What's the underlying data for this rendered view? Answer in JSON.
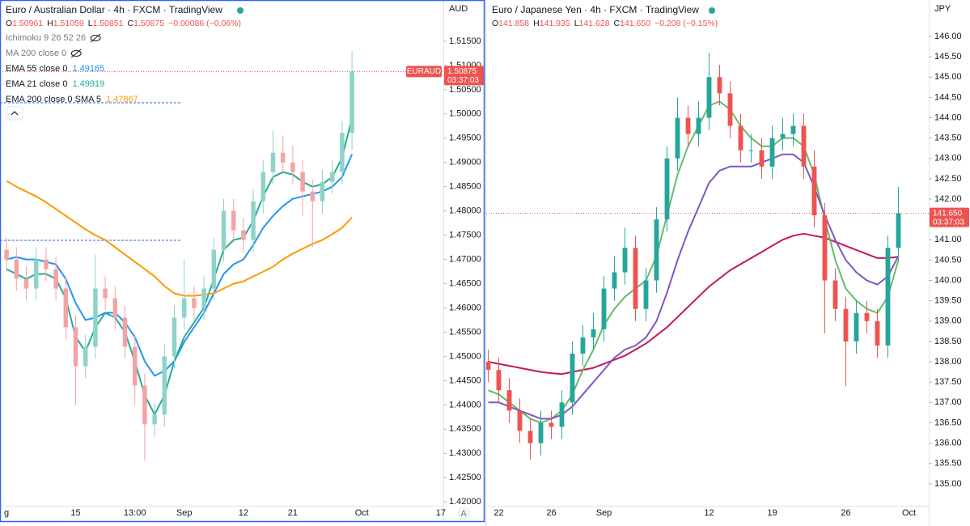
{
  "chart_data": [
    {
      "type": "candlestick",
      "title": "Euro / Australian Dollar · 4h · FXCM · TradingView",
      "ohlc": [
        {
          "label": "O",
          "value": "1.50961"
        },
        {
          "label": "H",
          "value": "1.51059"
        },
        {
          "label": "L",
          "value": "1.50851"
        },
        {
          "label": "C",
          "value": "1.50875"
        }
      ],
      "change": "−0.00086 (−0.06%)",
      "indicators": [
        "Ichimoku 9 26 52 26",
        "MA 200 close 0"
      ],
      "currency": "AUD",
      "symbol_tag": "EURAUD",
      "countdown": "03:37:03",
      "auto_button": "A",
      "up_color": "#8fd3c8",
      "down_color": "#f3a3a3",
      "ylim": [
        1.4192,
        1.5235
      ],
      "yticks": [
        {
          "value": 1.42,
          "label": "1.42000"
        },
        {
          "value": 1.425,
          "label": "1.42500"
        },
        {
          "value": 1.43,
          "label": "1.43000"
        },
        {
          "value": 1.435,
          "label": "1.43500"
        },
        {
          "value": 1.44,
          "label": "1.44000"
        },
        {
          "value": 1.445,
          "label": "1.44500"
        },
        {
          "value": 1.45,
          "label": "1.45000"
        },
        {
          "value": 1.455,
          "label": "1.45500"
        },
        {
          "value": 1.46,
          "label": "1.46000"
        },
        {
          "value": 1.465,
          "label": "1.46500"
        },
        {
          "value": 1.47,
          "label": "1.47000"
        },
        {
          "value": 1.475,
          "label": "1.47500"
        },
        {
          "value": 1.48,
          "label": "1.48000"
        },
        {
          "value": 1.485,
          "label": "1.48500"
        },
        {
          "value": 1.49,
          "label": "1.49000"
        },
        {
          "value": 1.495,
          "label": "1.49500"
        },
        {
          "value": 1.5,
          "label": "1.50000"
        },
        {
          "value": 1.505,
          "label": "1.50500"
        },
        {
          "value": 1.51,
          "label": "1.51000"
        },
        {
          "value": 1.515,
          "label": "1.51500"
        }
      ],
      "categories": [
        "g",
        null,
        null,
        null,
        null,
        null,
        null,
        "15",
        null,
        null,
        null,
        null,
        null,
        "13:00",
        null,
        null,
        null,
        null,
        "Sep",
        null,
        null,
        null,
        null,
        null,
        "12",
        null,
        null,
        null,
        null,
        "21",
        null,
        null,
        null,
        null,
        null,
        null,
        "Oct",
        null,
        null,
        null,
        null,
        null,
        null,
        null,
        "17"
      ],
      "open": [
        1.472,
        1.47,
        1.466,
        1.464,
        1.47,
        1.468,
        1.464,
        1.456,
        1.448,
        1.452,
        1.464,
        1.462,
        1.458,
        1.452,
        1.444,
        1.436,
        1.438,
        1.45,
        1.458,
        1.462,
        1.46,
        1.464,
        1.472,
        1.48,
        1.476,
        1.474,
        1.482,
        1.488,
        1.492,
        1.49,
        1.488,
        1.484,
        1.482,
        1.486,
        1.488,
        1.4961,
        null,
        null,
        null,
        null,
        null,
        null,
        null,
        null,
        null
      ],
      "high": [
        1.4745,
        1.4725,
        1.4685,
        1.4725,
        1.4725,
        1.4705,
        1.4665,
        1.4585,
        1.4545,
        1.471,
        1.4665,
        1.4645,
        1.4605,
        1.4545,
        1.4465,
        1.4405,
        1.4525,
        1.4605,
        1.47,
        1.4645,
        1.4665,
        1.4745,
        1.4825,
        1.4825,
        1.4785,
        1.4845,
        1.4905,
        1.4965,
        1.4955,
        1.4935,
        1.4905,
        1.4865,
        1.4885,
        1.4905,
        1.4985,
        1.513,
        null,
        null,
        null,
        null,
        null,
        null,
        null,
        null,
        null
      ],
      "low": [
        1.4675,
        1.4635,
        1.4615,
        1.4615,
        1.4655,
        1.4615,
        1.4535,
        1.44,
        1.4455,
        1.4495,
        1.4595,
        1.4555,
        1.4495,
        1.44,
        1.4285,
        1.4335,
        1.4355,
        1.4475,
        1.4555,
        1.4575,
        1.4575,
        1.4615,
        1.4695,
        1.4735,
        1.4715,
        1.4715,
        1.4795,
        1.4855,
        1.4875,
        1.4855,
        1.479,
        1.4725,
        1.4795,
        1.4835,
        1.4855,
        1.4925,
        null,
        null,
        null,
        null,
        null,
        null,
        null,
        null,
        null
      ],
      "close": [
        1.47,
        1.466,
        1.464,
        1.47,
        1.468,
        1.464,
        1.456,
        1.448,
        1.452,
        1.464,
        1.462,
        1.458,
        1.452,
        1.444,
        1.436,
        1.438,
        1.45,
        1.458,
        1.462,
        1.46,
        1.464,
        1.472,
        1.48,
        1.476,
        1.474,
        1.482,
        1.488,
        1.492,
        1.49,
        1.488,
        1.484,
        1.482,
        1.486,
        1.488,
        1.4961,
        1.50875,
        null,
        null,
        null,
        null,
        null,
        null,
        null,
        null,
        null
      ],
      "series": [
        {
          "name": "EMA 55 close 0",
          "color": "#2196f3",
          "last": 1.49165,
          "values": [
            1.47,
            1.4705,
            1.47,
            1.47,
            1.4695,
            1.469,
            1.466,
            1.461,
            1.4575,
            1.458,
            1.459,
            1.459,
            1.457,
            1.454,
            1.449,
            1.446,
            1.447,
            1.449,
            1.453,
            1.456,
            1.459,
            1.463,
            1.467,
            1.469,
            1.47,
            1.473,
            1.4765,
            1.479,
            1.481,
            1.4825,
            1.483,
            1.4835,
            1.484,
            1.485,
            1.487,
            1.4917,
            null,
            null,
            null,
            null,
            null,
            null,
            null,
            null,
            null
          ]
        },
        {
          "name": "EMA 21 close 0",
          "color": "#22ab94",
          "last": 1.49919,
          "values": [
            1.468,
            1.467,
            1.466,
            1.467,
            1.467,
            1.466,
            1.462,
            1.454,
            1.451,
            1.456,
            1.459,
            1.458,
            1.455,
            1.449,
            1.442,
            1.438,
            1.442,
            1.449,
            1.454,
            1.457,
            1.46,
            1.466,
            1.472,
            1.474,
            1.4745,
            1.478,
            1.483,
            1.487,
            1.488,
            1.4875,
            1.486,
            1.485,
            1.4855,
            1.487,
            1.491,
            1.4992,
            null,
            null,
            null,
            null,
            null,
            null,
            null,
            null,
            null
          ]
        },
        {
          "name": "EMA 200 close 0 SMA 5",
          "color": "#ff9800",
          "last": 1.47867,
          "values": [
            1.4862,
            1.485,
            1.484,
            1.483,
            1.4818,
            1.4804,
            1.479,
            1.4776,
            1.4762,
            1.475,
            1.474,
            1.4725,
            1.471,
            1.4695,
            1.468,
            1.4665,
            1.4645,
            1.463,
            1.4625,
            1.4625,
            1.4627,
            1.463,
            1.464,
            1.465,
            1.4655,
            1.4665,
            1.4675,
            1.4685,
            1.47,
            1.4712,
            1.4722,
            1.4732,
            1.474,
            1.4752,
            1.4765,
            1.4787,
            null,
            null,
            null,
            null,
            null,
            null,
            null,
            null,
            null
          ]
        }
      ]
    },
    {
      "type": "candlestick",
      "title": "Euro / Japanese Yen · 4h · FXCM · TradingView",
      "ohlc": [
        {
          "label": "O",
          "value": "141.858"
        },
        {
          "label": "H",
          "value": "141.935"
        },
        {
          "label": "L",
          "value": "141.628"
        },
        {
          "label": "C",
          "value": "141.650"
        }
      ],
      "change": "−0.208 (−0.15%)",
      "currency": "JPY",
      "countdown": "03:37:03",
      "up_color": "#26a69a",
      "down_color": "#ef5350",
      "ylim": [
        134.46,
        146.895
      ],
      "yticks": [
        {
          "value": 135,
          "label": "135.00"
        },
        {
          "value": 135.5,
          "label": "135.50"
        },
        {
          "value": 136,
          "label": "136.00"
        },
        {
          "value": 136.5,
          "label": "136.50"
        },
        {
          "value": 137,
          "label": "137.00"
        },
        {
          "value": 137.5,
          "label": "137.50"
        },
        {
          "value": 138,
          "label": "138.00"
        },
        {
          "value": 138.5,
          "label": "138.50"
        },
        {
          "value": 139,
          "label": "139.00"
        },
        {
          "value": 139.5,
          "label": "139.50"
        },
        {
          "value": 140,
          "label": "140.00"
        },
        {
          "value": 140.5,
          "label": "140.50"
        },
        {
          "value": 141,
          "label": "141.00"
        },
        {
          "value": 141.5,
          "label": "141.50"
        },
        {
          "value": 142,
          "label": "142.00"
        },
        {
          "value": 142.5,
          "label": "142.50"
        },
        {
          "value": 143,
          "label": "143.00"
        },
        {
          "value": 143.5,
          "label": "143.50"
        },
        {
          "value": 144,
          "label": "144.00"
        },
        {
          "value": 144.5,
          "label": "144.50"
        },
        {
          "value": 145,
          "label": "145.00"
        },
        {
          "value": 145.5,
          "label": "145.50"
        },
        {
          "value": 146,
          "label": "146.00"
        }
      ],
      "categories": [
        null,
        "22",
        null,
        null,
        null,
        null,
        "26",
        null,
        null,
        null,
        null,
        "Sep",
        null,
        null,
        null,
        null,
        null,
        null,
        null,
        null,
        null,
        "12",
        null,
        null,
        null,
        null,
        null,
        "19",
        null,
        null,
        null,
        null,
        null,
        null,
        "26",
        null,
        null,
        null,
        null,
        null,
        "Oct"
      ],
      "open": [
        138.0,
        137.8,
        137.3,
        136.8,
        136.3,
        136.0,
        136.5,
        136.4,
        137.0,
        138.2,
        138.6,
        138.8,
        139.8,
        140.2,
        140.8,
        139.3,
        140.0,
        141.5,
        143.0,
        144.0,
        143.6,
        144.0,
        145.0,
        144.6,
        143.8,
        143.2,
        143.2,
        142.8,
        143.5,
        143.6,
        143.8,
        142.8,
        141.6,
        140.0,
        139.3,
        138.5,
        139.2,
        139.0,
        138.4,
        140.8,
        null
      ],
      "high": [
        138.3,
        138.1,
        137.6,
        137.1,
        136.6,
        136.8,
        136.8,
        137.3,
        138.5,
        138.9,
        139.2,
        140.1,
        140.6,
        141.3,
        141.1,
        140.3,
        141.8,
        143.3,
        144.5,
        144.3,
        144.4,
        145.6,
        145.3,
        144.9,
        144.1,
        143.6,
        143.5,
        143.8,
        144.0,
        144.1,
        144.1,
        143.2,
        141.9,
        140.3,
        139.6,
        139.5,
        139.5,
        139.3,
        141.1,
        142.3,
        null
      ],
      "low": [
        137.5,
        137.0,
        136.5,
        136.0,
        135.6,
        135.7,
        136.1,
        136.1,
        136.7,
        137.9,
        138.3,
        138.5,
        139.5,
        139.9,
        139.0,
        139.0,
        139.7,
        141.2,
        142.7,
        143.3,
        143.3,
        143.7,
        144.3,
        143.5,
        142.9,
        142.9,
        142.5,
        142.5,
        143.2,
        143.3,
        142.5,
        141.3,
        138.7,
        139.0,
        137.4,
        138.2,
        138.7,
        138.1,
        138.1,
        140.5,
        null
      ],
      "close": [
        137.8,
        137.3,
        136.8,
        136.3,
        136.0,
        136.5,
        136.4,
        137.0,
        138.2,
        138.6,
        138.8,
        139.8,
        140.2,
        140.8,
        139.3,
        140.0,
        141.5,
        143.0,
        144.0,
        143.6,
        144.0,
        145.0,
        144.6,
        143.8,
        143.2,
        143.2,
        142.8,
        143.5,
        143.6,
        143.8,
        142.8,
        141.6,
        140.0,
        139.3,
        138.5,
        139.2,
        139.0,
        138.4,
        140.8,
        141.65,
        null
      ],
      "series": [
        {
          "color": "#c2185b",
          "values": [
            138.0,
            137.95,
            137.9,
            137.85,
            137.8,
            137.75,
            137.72,
            137.7,
            137.75,
            137.8,
            137.85,
            137.95,
            138.05,
            138.15,
            138.3,
            138.45,
            138.65,
            138.85,
            139.1,
            139.35,
            139.6,
            139.85,
            140.05,
            140.25,
            140.4,
            140.55,
            140.7,
            140.85,
            141.0,
            141.1,
            141.15,
            141.1,
            141.05,
            140.95,
            140.85,
            140.75,
            140.65,
            140.55,
            140.55,
            140.58,
            null
          ]
        },
        {
          "color": "#66bb6a",
          "values": [
            137.3,
            137.2,
            137.0,
            136.8,
            136.6,
            136.5,
            136.6,
            136.8,
            137.2,
            137.8,
            138.3,
            138.9,
            139.3,
            139.6,
            139.8,
            140.0,
            140.6,
            141.6,
            142.6,
            143.3,
            143.8,
            144.3,
            144.4,
            144.2,
            143.8,
            143.5,
            143.3,
            143.3,
            143.5,
            143.5,
            143.3,
            142.6,
            141.5,
            140.5,
            139.8,
            139.5,
            139.3,
            139.2,
            139.6,
            140.5,
            null
          ]
        },
        {
          "color": "#7e57c2",
          "values": [
            137.0,
            137.0,
            136.9,
            136.8,
            136.7,
            136.6,
            136.6,
            136.7,
            136.9,
            137.2,
            137.5,
            137.8,
            138.1,
            138.3,
            138.4,
            138.6,
            139.0,
            139.7,
            140.5,
            141.2,
            141.8,
            142.4,
            142.7,
            142.8,
            142.8,
            142.8,
            142.9,
            143.0,
            143.1,
            143.1,
            142.9,
            142.3,
            141.6,
            141.0,
            140.5,
            140.2,
            140.0,
            139.9,
            140.1,
            140.6,
            null
          ]
        }
      ]
    }
  ]
}
